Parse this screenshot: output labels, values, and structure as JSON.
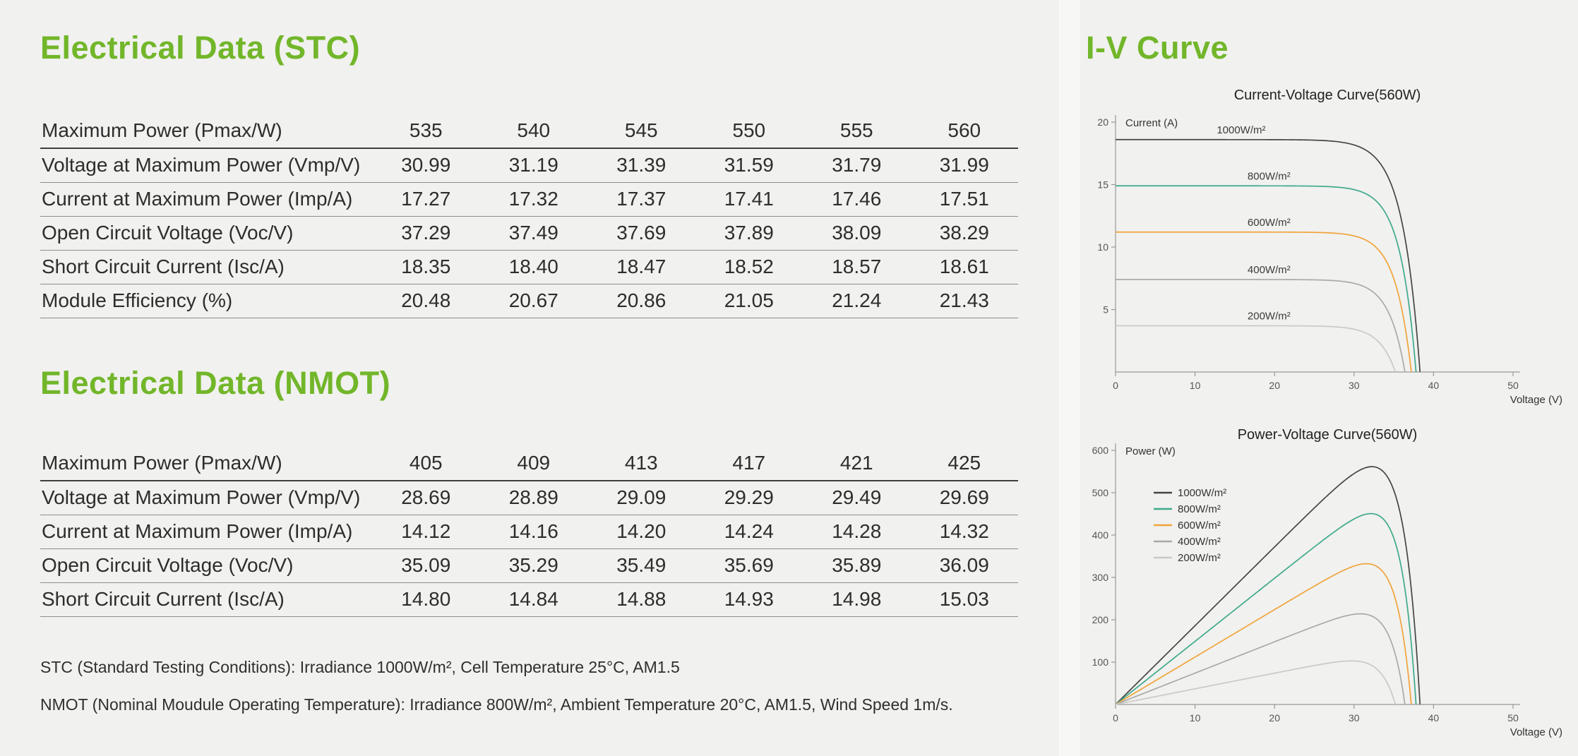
{
  "page": {
    "accent_green": "#72b62a",
    "background": "#f1f1ef",
    "table_line_color": "#8d8d8d"
  },
  "headings": {
    "stc": "Electrical Data (STC)",
    "nmot": "Electrical Data (NMOT)",
    "iv": "I-V Curve"
  },
  "stc_table": {
    "rows": [
      {
        "label": "Maximum Power (Pmax/W)",
        "values": [
          "535",
          "540",
          "545",
          "550",
          "555",
          "560"
        ]
      },
      {
        "label": "Voltage at Maximum Power (Vmp/V)",
        "values": [
          "30.99",
          "31.19",
          "31.39",
          "31.59",
          "31.79",
          "31.99"
        ]
      },
      {
        "label": "Current at Maximum Power (Imp/A)",
        "values": [
          "17.27",
          "17.32",
          "17.37",
          "17.41",
          "17.46",
          "17.51"
        ]
      },
      {
        "label": "Open Circuit Voltage (Voc/V)",
        "values": [
          "37.29",
          "37.49",
          "37.69",
          "37.89",
          "38.09",
          "38.29"
        ]
      },
      {
        "label": "Short Circuit Current (Isc/A)",
        "values": [
          "18.35",
          "18.40",
          "18.47",
          "18.52",
          "18.57",
          "18.61"
        ]
      },
      {
        "label": "Module Efficiency (%)",
        "values": [
          "20.48",
          "20.67",
          "20.86",
          "21.05",
          "21.24",
          "21.43"
        ]
      }
    ]
  },
  "nmot_table": {
    "rows": [
      {
        "label": "Maximum Power (Pmax/W)",
        "values": [
          "405",
          "409",
          "413",
          "417",
          "421",
          "425"
        ]
      },
      {
        "label": "Voltage at Maximum Power (Vmp/V)",
        "values": [
          "28.69",
          "28.89",
          "29.09",
          "29.29",
          "29.49",
          "29.69"
        ]
      },
      {
        "label": "Current at Maximum Power (Imp/A)",
        "values": [
          "14.12",
          "14.16",
          "14.20",
          "14.24",
          "14.28",
          "14.32"
        ]
      },
      {
        "label": "Open Circuit Voltage (Voc/V)",
        "values": [
          "35.09",
          "35.29",
          "35.49",
          "35.69",
          "35.89",
          "36.09"
        ]
      },
      {
        "label": "Short Circuit Current (Isc/A)",
        "values": [
          "14.80",
          "14.84",
          "14.88",
          "14.93",
          "14.98",
          "15.03"
        ]
      }
    ]
  },
  "footnotes": {
    "stc": "STC (Standard Testing Conditions): Irradiance 1000W/m², Cell Temperature 25°C, AM1.5",
    "nmot": "NMOT (Nominal Moudule Operating Temperature): Irradiance 800W/m², Ambient Temperature 20°C, AM1.5, Wind Speed 1m/s."
  },
  "chart_data": [
    {
      "type": "line",
      "title": "Current-Voltage Curve(560W)",
      "xlabel": "Voltage (V)",
      "ylabel": "Current (A)",
      "xlim": [
        0,
        50
      ],
      "ylim": [
        0,
        20
      ],
      "xticks": [
        0,
        10,
        20,
        30,
        40,
        50
      ],
      "yticks": [
        5,
        10,
        15,
        20
      ],
      "grid": false,
      "legend_position": "inline-curve-labels",
      "series": [
        {
          "name": "1000W/m²",
          "color": "#454545",
          "isc": 18.6,
          "voc": 38.3,
          "a": 2.2,
          "label_v": 15.8
        },
        {
          "name": "800W/m²",
          "color": "#3ea98b",
          "isc": 14.9,
          "voc": 37.8,
          "a": 2.0,
          "label_v": 19.3
        },
        {
          "name": "600W/m²",
          "color": "#f0a43c",
          "isc": 11.2,
          "voc": 37.2,
          "a": 2.0,
          "label_v": 19.3
        },
        {
          "name": "400W/m²",
          "color": "#a9a9a9",
          "isc": 7.4,
          "voc": 36.4,
          "a": 2.0,
          "label_v": 19.3
        },
        {
          "name": "200W/m²",
          "color": "#c9c9c9",
          "isc": 3.7,
          "voc": 35.2,
          "a": 2.0,
          "label_v": 19.3
        }
      ]
    },
    {
      "type": "line",
      "title": "Power-Voltage Curve(560W)",
      "xlabel": "Voltage (V)",
      "ylabel": "Power (W)",
      "xlim": [
        0,
        50
      ],
      "ylim": [
        0,
        600
      ],
      "xticks": [
        0,
        10,
        20,
        30,
        40,
        50
      ],
      "yticks": [
        100,
        200,
        300,
        400,
        500,
        600
      ],
      "grid": false,
      "legend_position": "top-left-inside",
      "series": [
        {
          "name": "1000W/m²",
          "color": "#454545",
          "isc": 18.6,
          "voc": 38.3,
          "a": 2.2,
          "pmax_approx": 555
        },
        {
          "name": "800W/m²",
          "color": "#3ea98b",
          "isc": 14.9,
          "voc": 37.8,
          "a": 2.0,
          "pmax_approx": 445
        },
        {
          "name": "600W/m²",
          "color": "#f0a43c",
          "isc": 11.2,
          "voc": 37.2,
          "a": 2.0,
          "pmax_approx": 335
        },
        {
          "name": "400W/m²",
          "color": "#a9a9a9",
          "isc": 7.4,
          "voc": 36.4,
          "a": 2.0,
          "pmax_approx": 225
        },
        {
          "name": "200W/m²",
          "color": "#c9c9c9",
          "isc": 3.7,
          "voc": 35.2,
          "a": 2.0,
          "pmax_approx": 110
        }
      ]
    }
  ]
}
